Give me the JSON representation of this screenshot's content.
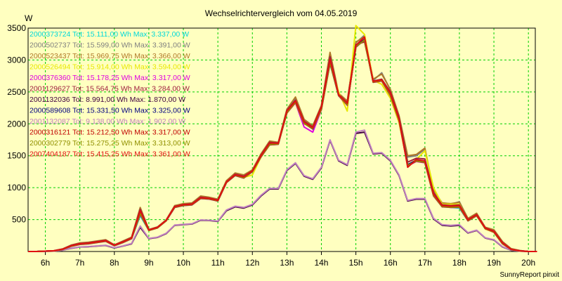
{
  "chart_data": {
    "type": "line",
    "title": "Wechselrichtervergleich vom 04.05.2019",
    "ylabel": "W",
    "credit": "SunnyReport pinxit",
    "xlim": [
      5.5,
      20.2
    ],
    "ylim": [
      0,
      3500
    ],
    "x_ticks": [
      6,
      7,
      8,
      9,
      10,
      11,
      12,
      13,
      14,
      15,
      16,
      17,
      18,
      19,
      20
    ],
    "x_tick_labels": [
      "6h",
      "7h",
      "8h",
      "9h",
      "10h",
      "11h",
      "12h",
      "13h",
      "14h",
      "15h",
      "16h",
      "17h",
      "18h",
      "19h",
      "20h"
    ],
    "y_ticks": [
      500,
      1000,
      1500,
      2000,
      2500,
      3000,
      3500
    ],
    "y_tick_labels": [
      "500",
      "1000",
      "1500",
      "2000",
      "2500",
      "3000",
      "3500"
    ],
    "grid": true,
    "legend_position": "top-left",
    "x": [
      5.5,
      5.75,
      6.0,
      6.25,
      6.5,
      6.75,
      7.0,
      7.25,
      7.5,
      7.75,
      8.0,
      8.25,
      8.5,
      8.75,
      9.0,
      9.25,
      9.5,
      9.75,
      10.0,
      10.25,
      10.5,
      10.75,
      11.0,
      11.25,
      11.5,
      11.75,
      12.0,
      12.25,
      12.5,
      12.75,
      13.0,
      13.25,
      13.5,
      13.75,
      14.0,
      14.25,
      14.5,
      14.75,
      15.0,
      15.25,
      15.5,
      15.75,
      16.0,
      16.25,
      16.5,
      16.75,
      17.0,
      17.25,
      17.5,
      17.75,
      18.0,
      18.25,
      18.5,
      18.75,
      19.0,
      19.25,
      19.5,
      19.75,
      20.0,
      20.25
    ],
    "series": [
      {
        "name": "2000373724 Tot: 15.111,00 Wh Max: 3.337,00 W",
        "color": "#00d8d8",
        "values": [
          0,
          0,
          5,
          10,
          30,
          80,
          110,
          120,
          140,
          160,
          90,
          140,
          200,
          560,
          330,
          370,
          480,
          690,
          720,
          730,
          830,
          820,
          790,
          1080,
          1190,
          1150,
          1250,
          1480,
          1670,
          1680,
          2170,
          2340,
          2010,
          1930,
          2230,
          2940,
          2440,
          2300,
          3200,
          3320,
          2650,
          2680,
          2450,
          2060,
          1340,
          1420,
          1390,
          880,
          700,
          690,
          680,
          480,
          560,
          360,
          300,
          120,
          30,
          10,
          0,
          0
        ]
      },
      {
        "name": "2000502737 Tot: 15.599,00 Wh Max: 3.391,00 W",
        "color": "#808080",
        "values": [
          0,
          0,
          5,
          12,
          40,
          100,
          130,
          140,
          160,
          180,
          100,
          160,
          220,
          680,
          340,
          380,
          490,
          710,
          740,
          750,
          860,
          840,
          810,
          1100,
          1220,
          1190,
          1270,
          1520,
          1720,
          1700,
          2220,
          2400,
          2050,
          1960,
          2280,
          3100,
          2470,
          2340,
          3270,
          3390,
          2680,
          2800,
          2530,
          2120,
          1480,
          1500,
          1600,
          950,
          750,
          740,
          780,
          510,
          590,
          370,
          330,
          150,
          40,
          15,
          0,
          0
        ]
      },
      {
        "name": "2000523437 Tot: 15.969,75 Wh Max: 3.366,00 W",
        "color": "#b07828",
        "values": [
          0,
          0,
          5,
          12,
          40,
          100,
          135,
          145,
          165,
          185,
          105,
          165,
          225,
          690,
          345,
          385,
          495,
          720,
          750,
          760,
          870,
          850,
          820,
          1110,
          1230,
          1200,
          1280,
          1530,
          1730,
          1710,
          2230,
          2420,
          2070,
          1970,
          2290,
          3120,
          2480,
          2360,
          3280,
          3366,
          2700,
          2780,
          2540,
          2130,
          1500,
          1520,
          1620,
          960,
          760,
          750,
          770,
          520,
          600,
          380,
          340,
          155,
          45,
          15,
          0,
          0
        ]
      },
      {
        "name": "2000526494 Tot: 15.914,00 Wh Max: 3.594,00 W",
        "color": "#e8e800",
        "values": [
          0,
          0,
          5,
          10,
          35,
          90,
          120,
          130,
          150,
          170,
          95,
          150,
          210,
          620,
          330,
          370,
          480,
          700,
          730,
          740,
          840,
          830,
          800,
          1080,
          1200,
          1160,
          1200,
          1480,
          1690,
          1700,
          2200,
          2330,
          2000,
          1950,
          2250,
          2980,
          2500,
          2200,
          3540,
          3400,
          2680,
          2620,
          2400,
          2020,
          1350,
          1440,
          1580,
          1000,
          740,
          740,
          740,
          480,
          560,
          350,
          300,
          120,
          30,
          10,
          0,
          0
        ]
      },
      {
        "name": "2000376360 Tot: 15.178,25 Wh Max: 3.317,00 W",
        "color": "#e000e0",
        "values": [
          0,
          0,
          5,
          10,
          30,
          80,
          110,
          120,
          140,
          160,
          90,
          140,
          200,
          580,
          330,
          370,
          480,
          690,
          720,
          730,
          830,
          820,
          790,
          1080,
          1190,
          1150,
          1250,
          1480,
          1670,
          1680,
          2170,
          2330,
          1950,
          1870,
          2220,
          2950,
          2440,
          2290,
          3200,
          3317,
          2650,
          2670,
          2440,
          2050,
          1340,
          1410,
          1390,
          870,
          700,
          690,
          690,
          480,
          560,
          360,
          300,
          120,
          30,
          10,
          0,
          0
        ]
      },
      {
        "name": "2001129627 Tot: 15.564,75 Wh Max: 3.284,00 W",
        "color": "#a02040",
        "values": [
          0,
          0,
          5,
          12,
          38,
          95,
          125,
          135,
          155,
          175,
          100,
          155,
          215,
          660,
          340,
          380,
          490,
          705,
          735,
          745,
          850,
          835,
          805,
          1090,
          1210,
          1180,
          1260,
          1510,
          1710,
          1700,
          2210,
          2370,
          2040,
          1950,
          2270,
          3050,
          2460,
          2330,
          3240,
          3284,
          2670,
          2700,
          2500,
          2100,
          1400,
          1460,
          1450,
          920,
          730,
          720,
          730,
          500,
          580,
          370,
          320,
          140,
          35,
          12,
          0,
          0
        ]
      },
      {
        "name": "2001132036 Tot: 8.991,00 Wh Max: 1.870,00 W",
        "color": "#400040",
        "values": [
          0,
          0,
          3,
          6,
          20,
          50,
          70,
          75,
          85,
          95,
          55,
          85,
          120,
          380,
          200,
          220,
          280,
          410,
          420,
          430,
          490,
          485,
          470,
          640,
          700,
          680,
          730,
          870,
          980,
          980,
          1270,
          1380,
          1180,
          1130,
          1310,
          1740,
          1420,
          1350,
          1850,
          1870,
          1530,
          1540,
          1420,
          1190,
          790,
          820,
          820,
          510,
          410,
          400,
          410,
          290,
          330,
          210,
          180,
          70,
          20,
          5,
          0,
          0
        ]
      },
      {
        "name": "2000589608 Tot: 15.331,50 Wh Max: 3.325,00 W",
        "color": "#000080",
        "values": [
          0,
          0,
          5,
          11,
          33,
          85,
          115,
          125,
          145,
          165,
          95,
          145,
          205,
          600,
          335,
          375,
          485,
          700,
          730,
          740,
          840,
          830,
          800,
          1090,
          1200,
          1160,
          1260,
          1490,
          1690,
          1690,
          2190,
          2350,
          2010,
          1920,
          2240,
          2990,
          2450,
          2310,
          3220,
          3325,
          2660,
          2690,
          2470,
          2070,
          1360,
          1430,
          1420,
          890,
          710,
          700,
          710,
          490,
          570,
          360,
          310,
          130,
          32,
          11,
          0,
          0
        ]
      },
      {
        "name": "2001132087 Tot: 9.138,00 Wh Max: 1.902,00 W",
        "color": "#c080c0",
        "values": [
          0,
          0,
          3,
          6,
          20,
          52,
          72,
          78,
          88,
          98,
          58,
          88,
          125,
          400,
          205,
          225,
          285,
          415,
          425,
          435,
          495,
          490,
          475,
          650,
          710,
          690,
          740,
          880,
          990,
          990,
          1280,
          1390,
          1190,
          1140,
          1320,
          1750,
          1430,
          1360,
          1870,
          1902,
          1540,
          1550,
          1430,
          1200,
          800,
          830,
          830,
          520,
          420,
          410,
          420,
          295,
          335,
          215,
          185,
          75,
          22,
          6,
          0,
          0
        ]
      },
      {
        "name": "2000316121 Tot: 15.212,50 Wh Max: 3.317,00 W",
        "color": "#c00000",
        "values": [
          0,
          0,
          5,
          10,
          32,
          82,
          112,
          122,
          142,
          162,
          92,
          142,
          202,
          590,
          330,
          370,
          480,
          692,
          722,
          732,
          832,
          822,
          792,
          1082,
          1192,
          1152,
          1252,
          1482,
          1672,
          1682,
          2172,
          2335,
          2005,
          1925,
          2225,
          2955,
          2445,
          2295,
          3205,
          3317,
          2652,
          2675,
          2445,
          2055,
          1345,
          1415,
          1395,
          875,
          702,
          692,
          695,
          482,
          562,
          362,
          302,
          122,
          31,
          10,
          0,
          0
        ]
      },
      {
        "name": "2000302779 Tot: 15.275,25 Wh Max: 3.313,00 W",
        "color": "#909000",
        "values": [
          0,
          0,
          5,
          11,
          33,
          84,
          114,
          124,
          144,
          164,
          94,
          144,
          204,
          595,
          332,
          372,
          482,
          695,
          725,
          735,
          835,
          825,
          795,
          1085,
          1195,
          1155,
          1255,
          1485,
          1675,
          1685,
          2175,
          2340,
          2008,
          1928,
          2228,
          2960,
          2448,
          2298,
          3208,
          3313,
          2655,
          2678,
          2448,
          2058,
          1348,
          1418,
          1398,
          878,
          705,
          695,
          698,
          485,
          565,
          365,
          305,
          125,
          32,
          10,
          0,
          0
        ]
      },
      {
        "name": "2007404187 Tot: 15.415,25 Wh Max: 3.361,00 W",
        "color": "#e01010",
        "values": [
          0,
          0,
          5,
          12,
          36,
          90,
          120,
          130,
          150,
          170,
          98,
          150,
          210,
          640,
          338,
          378,
          488,
          702,
          732,
          742,
          842,
          832,
          802,
          1092,
          1202,
          1170,
          1262,
          1500,
          1700,
          1695,
          2200,
          2360,
          2030,
          1940,
          2260,
          3010,
          2455,
          2320,
          3230,
          3361,
          2665,
          2690,
          2480,
          2080,
          1320,
          1440,
          1420,
          900,
          720,
          710,
          720,
          495,
          575,
          368,
          315,
          135,
          34,
          11,
          0,
          0
        ]
      }
    ]
  }
}
